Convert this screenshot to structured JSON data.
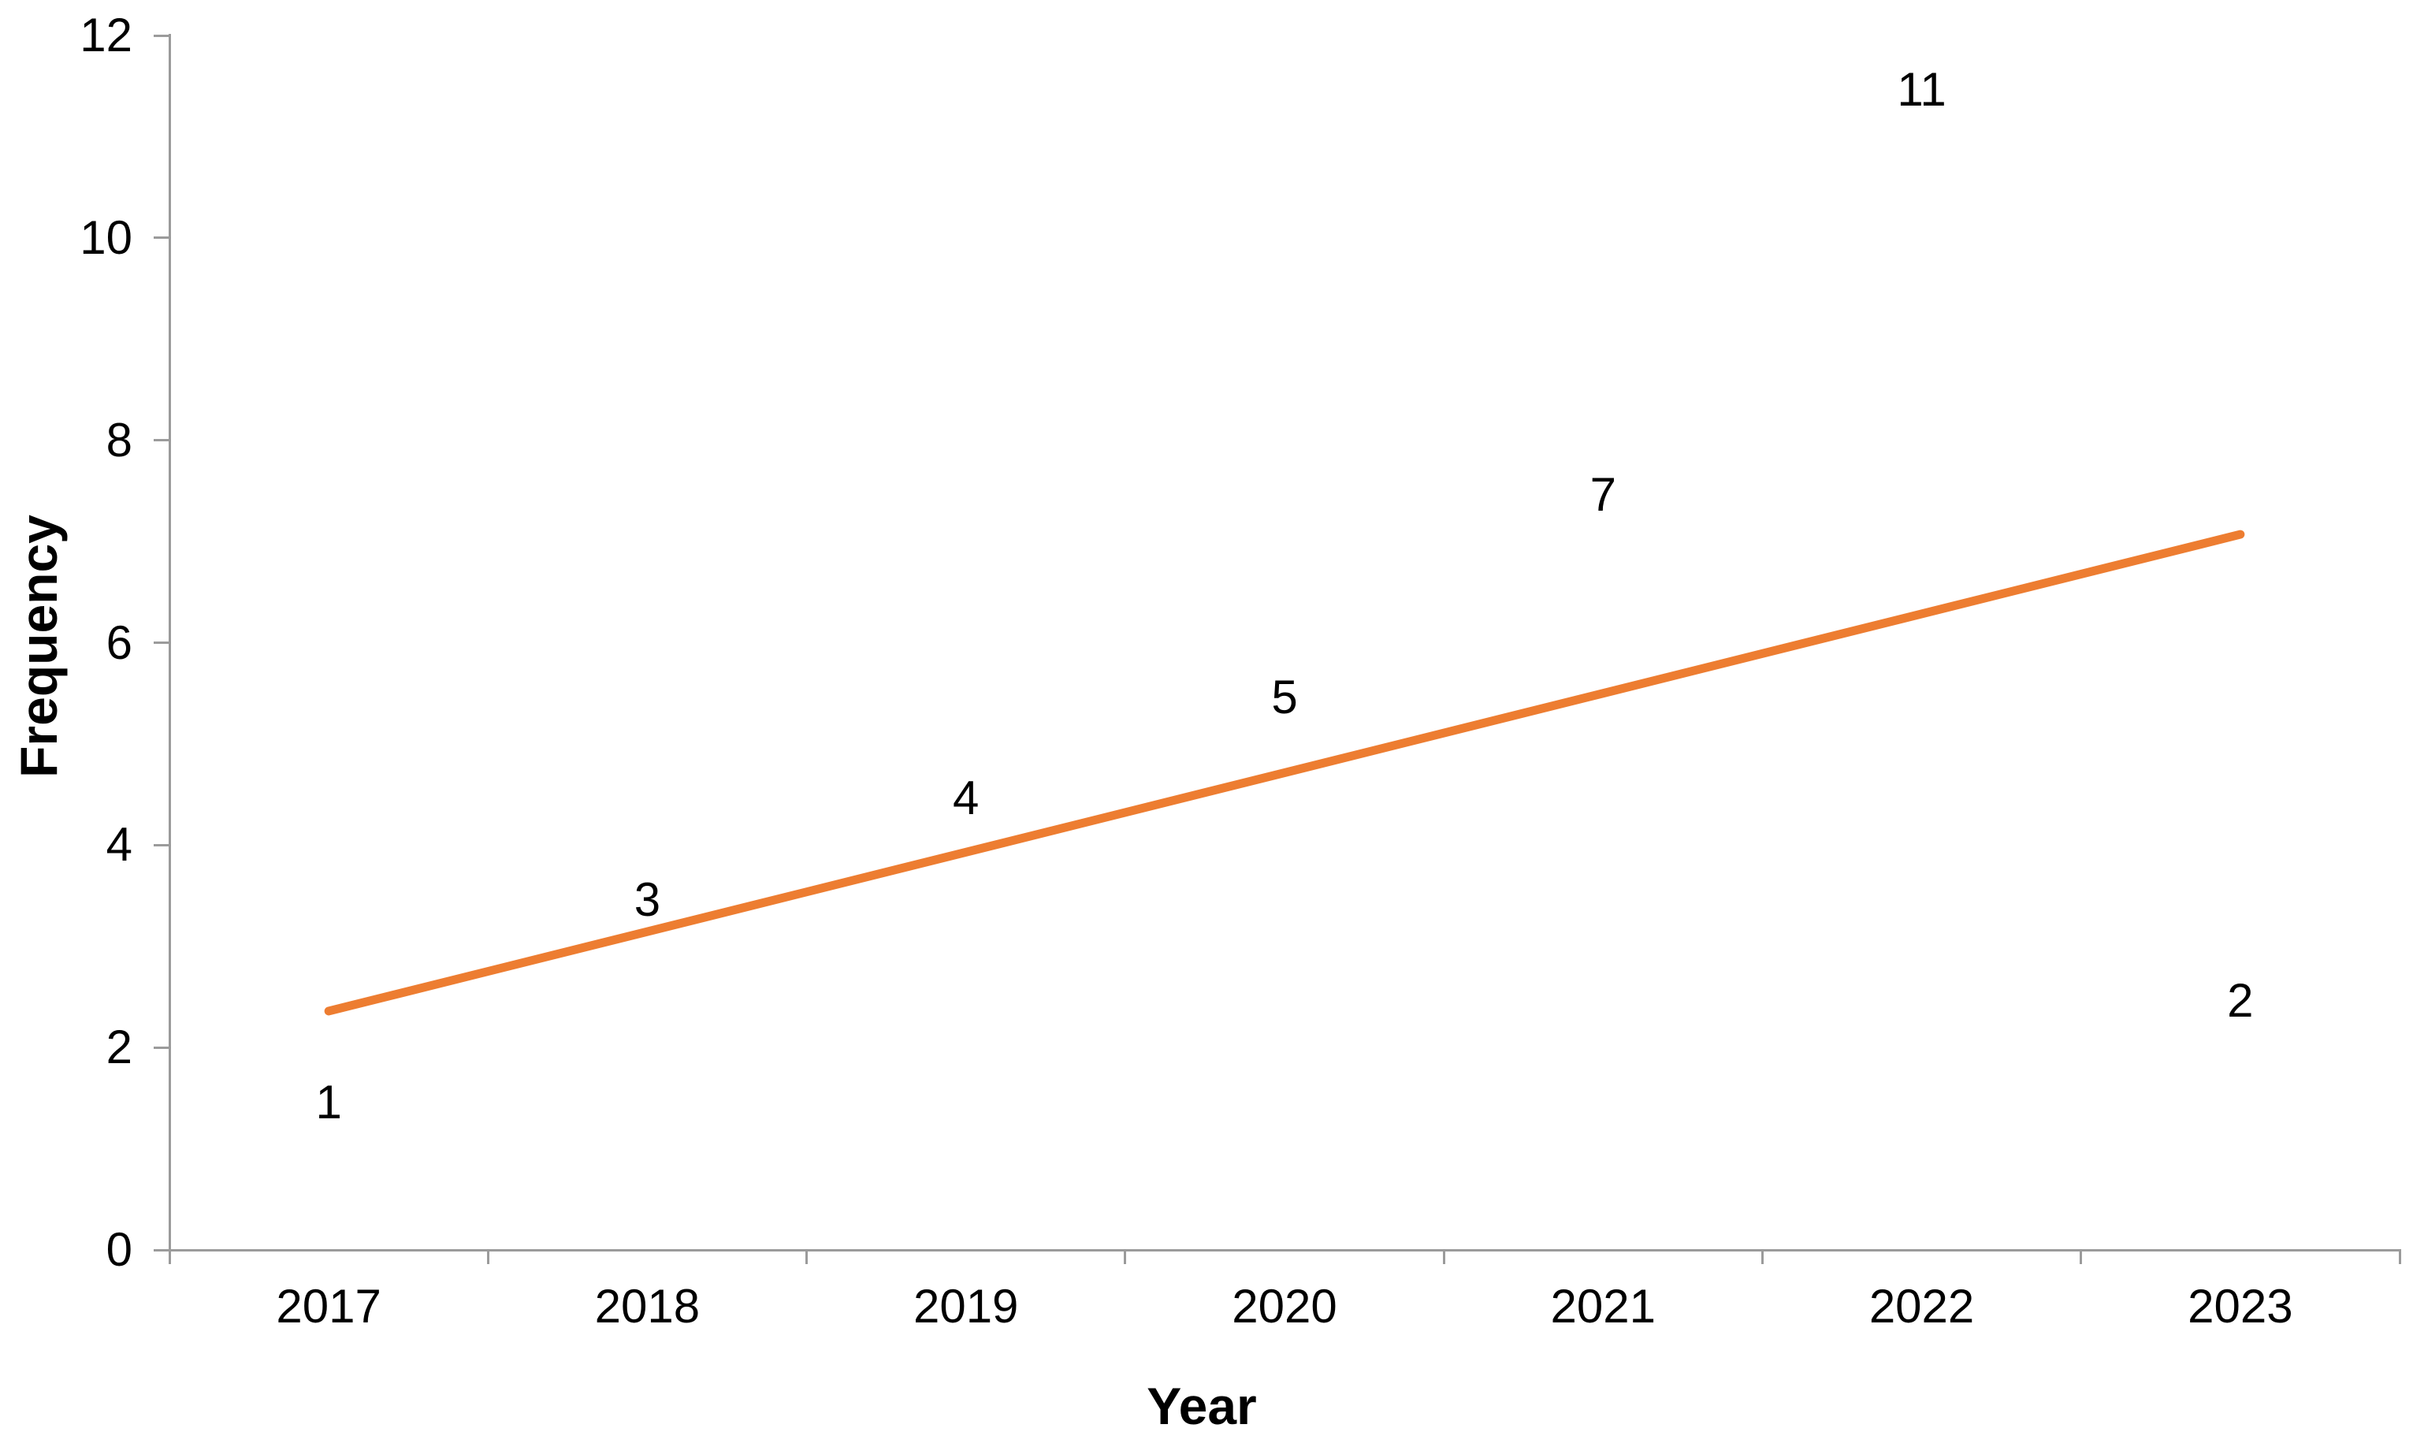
{
  "chart_data": {
    "type": "bar",
    "title": "",
    "categories": [
      "2017",
      "2018",
      "2019",
      "2020",
      "2021",
      "2022",
      "2023"
    ],
    "values": [
      1,
      3,
      4,
      5,
      7,
      11,
      2
    ],
    "data_labels": [
      "1",
      "3",
      "4",
      "5",
      "7",
      "11",
      "2"
    ],
    "xlabel": "Year",
    "ylabel": "Frequency",
    "ylim": [
      0,
      12
    ],
    "yticks": [
      0,
      2,
      4,
      6,
      8,
      10,
      12
    ],
    "grid": false,
    "legend": "none",
    "bar_color": "#4A79CD",
    "bar_highlight_color": "#DDEBFB",
    "bar_edge_color": "#0E2148",
    "axis_color": "#9B9B9B",
    "text_color": "#000000",
    "trendline": {
      "type": "linear",
      "start_value": 2.36,
      "end_value": 7.07,
      "color": "#ED7D31"
    }
  }
}
